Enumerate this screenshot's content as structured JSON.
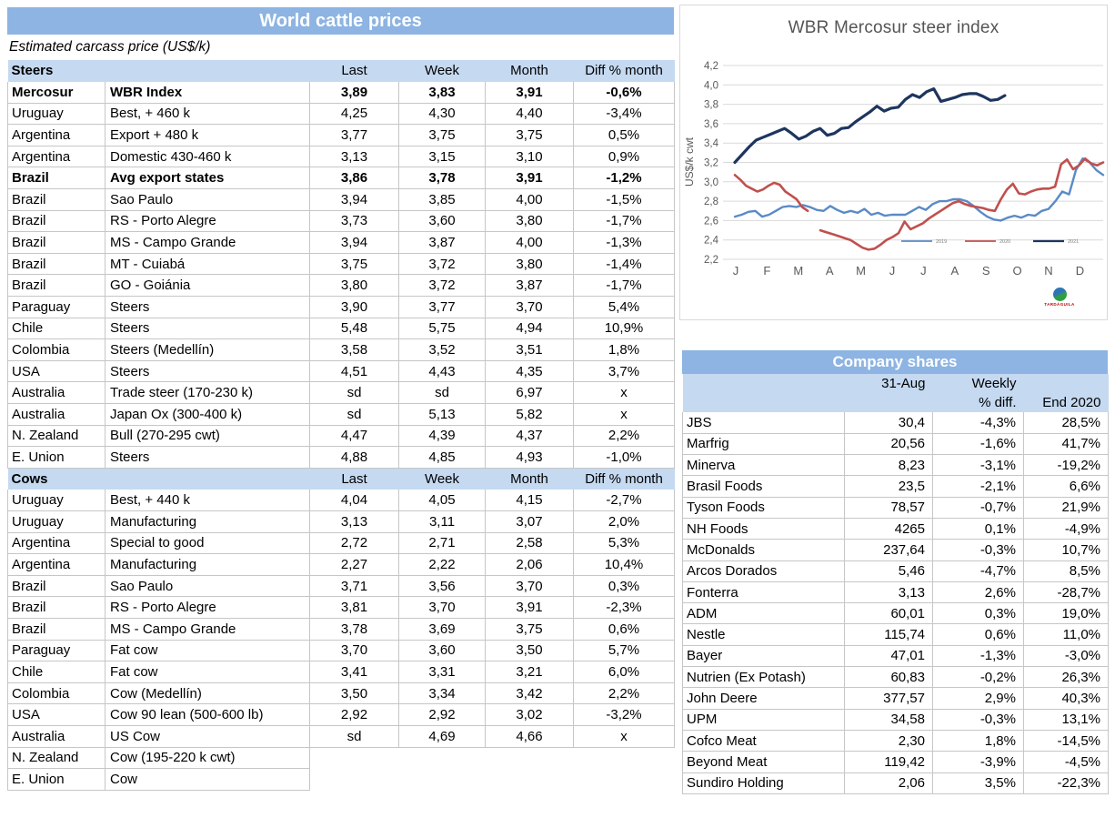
{
  "colors": {
    "title_bar_blue": "#8DB4E2",
    "section_band_blue": "#C5D9F1",
    "cell_border": "#C6C6C6",
    "chart_text_gray": "#595959",
    "series_2019_blue": "#5A8AC6",
    "series_2020_red": "#C0504D",
    "series_2021_navy": "#1E355E",
    "logo_text_red": "#c00000"
  },
  "world_table": {
    "title": "World cattle prices",
    "subtitle": "Estimated carcass price (US$/k)",
    "column_headers": [
      "Last",
      "Week",
      "Month",
      "Diff % month"
    ],
    "sections": [
      {
        "label": "Steers",
        "rows": [
          {
            "country": "Mercosur",
            "desc": "WBR Index",
            "last": "3,89",
            "week": "3,83",
            "month": "3,91",
            "diff": "-0,6%",
            "bold": true
          },
          {
            "country": "Uruguay",
            "desc": "Best, + 460 k",
            "last": "4,25",
            "week": "4,30",
            "month": "4,40",
            "diff": "-3,4%"
          },
          {
            "country": "Argentina",
            "desc": "Export + 480 k",
            "last": "3,77",
            "week": "3,75",
            "month": "3,75",
            "diff": "0,5%"
          },
          {
            "country": "Argentina",
            "desc": "Domestic 430-460 k",
            "last": "3,13",
            "week": "3,15",
            "month": "3,10",
            "diff": "0,9%"
          },
          {
            "country": "Brazil",
            "desc": "Avg export states",
            "last": "3,86",
            "week": "3,78",
            "month": "3,91",
            "diff": "-1,2%",
            "bold": true
          },
          {
            "country": "Brazil",
            "desc": "Sao Paulo",
            "last": "3,94",
            "week": "3,85",
            "month": "4,00",
            "diff": "-1,5%"
          },
          {
            "country": "Brazil",
            "desc": "RS - Porto Alegre",
            "last": "3,73",
            "week": "3,60",
            "month": "3,80",
            "diff": "-1,7%"
          },
          {
            "country": "Brazil",
            "desc": "MS - Campo Grande",
            "last": "3,94",
            "week": "3,87",
            "month": "4,00",
            "diff": "-1,3%"
          },
          {
            "country": "Brazil",
            "desc": "MT - Cuiabá",
            "last": "3,75",
            "week": "3,72",
            "month": "3,80",
            "diff": "-1,4%"
          },
          {
            "country": "Brazil",
            "desc": "GO - Goiánia",
            "last": "3,80",
            "week": "3,72",
            "month": "3,87",
            "diff": "-1,7%"
          },
          {
            "country": "Paraguay",
            "desc": "Steers",
            "last": "3,90",
            "week": "3,77",
            "month": "3,70",
            "diff": "5,4%"
          },
          {
            "country": "Chile",
            "desc": "Steers",
            "last": "5,48",
            "week": "5,75",
            "month": "4,94",
            "diff": "10,9%"
          },
          {
            "country": "Colombia",
            "desc": "Steers (Medellín)",
            "last": "3,58",
            "week": "3,52",
            "month": "3,51",
            "diff": "1,8%"
          },
          {
            "country": "USA",
            "desc": "Steers",
            "last": "4,51",
            "week": "4,43",
            "month": "4,35",
            "diff": "3,7%"
          },
          {
            "country": "Australia",
            "desc": "Trade steer (170-230 k)",
            "last": "sd",
            "week": "sd",
            "month": "6,97",
            "diff": "x"
          },
          {
            "country": "Australia",
            "desc": "Japan Ox (300-400 k)",
            "last": "sd",
            "week": "5,13",
            "month": "5,82",
            "diff": "x"
          },
          {
            "country": "N. Zealand",
            "desc": "Bull (270-295 cwt)",
            "last": "4,47",
            "week": "4,39",
            "month": "4,37",
            "diff": "2,2%"
          },
          {
            "country": "E. Union",
            "desc": "Steers",
            "last": "4,88",
            "week": "4,85",
            "month": "4,93",
            "diff": "-1,0%"
          }
        ]
      },
      {
        "label": "Cows",
        "rows": [
          {
            "country": "Uruguay",
            "desc": "Best, + 440 k",
            "last": "4,04",
            "week": "4,05",
            "month": "4,15",
            "diff": "-2,7%"
          },
          {
            "country": "Uruguay",
            "desc": "Manufacturing",
            "last": "3,13",
            "week": "3,11",
            "month": "3,07",
            "diff": "2,0%"
          },
          {
            "country": "Argentina",
            "desc": "Special to good",
            "last": "2,72",
            "week": "2,71",
            "month": "2,58",
            "diff": "5,3%"
          },
          {
            "country": "Argentina",
            "desc": "Manufacturing",
            "last": "2,27",
            "week": "2,22",
            "month": "2,06",
            "diff": "10,4%"
          },
          {
            "country": "Brazil",
            "desc": "Sao Paulo",
            "last": "3,71",
            "week": "3,56",
            "month": "3,70",
            "diff": "0,3%"
          },
          {
            "country": "Brazil",
            "desc": "RS - Porto Alegre",
            "last": "3,81",
            "week": "3,70",
            "month": "3,91",
            "diff": "-2,3%"
          },
          {
            "country": "Brazil",
            "desc": "MS - Campo Grande",
            "last": "3,78",
            "week": "3,69",
            "month": "3,75",
            "diff": "0,6%"
          },
          {
            "country": "Paraguay",
            "desc": "Fat cow",
            "last": "3,70",
            "week": "3,60",
            "month": "3,50",
            "diff": "5,7%"
          },
          {
            "country": "Chile",
            "desc": "Fat cow",
            "last": "3,41",
            "week": "3,31",
            "month": "3,21",
            "diff": "6,0%"
          },
          {
            "country": "Colombia",
            "desc": "Cow (Medellín)",
            "last": "3,50",
            "week": "3,34",
            "month": "3,42",
            "diff": "2,2%"
          },
          {
            "country": "USA",
            "desc": "Cow 90 lean (500-600 lb)",
            "last": "2,92",
            "week": "2,92",
            "month": "3,02",
            "diff": "-3,2%"
          },
          {
            "country": "Australia",
            "desc": "US Cow",
            "last": "sd",
            "week": "4,69",
            "month": "4,66",
            "diff": "x"
          },
          {
            "country": "N. Zealand",
            "desc": "Cow (195-220 k cwt)",
            "last": "",
            "week": "",
            "month": "",
            "diff": "",
            "partial": true
          },
          {
            "country": "E. Union",
            "desc": "Cow",
            "last": "",
            "week": "",
            "month": "",
            "diff": "",
            "partial": true
          }
        ]
      }
    ]
  },
  "chart_data": {
    "type": "line",
    "title": "WBR Mercosur steer index",
    "ylabel": "US$/k cwt",
    "ylim": [
      2.2,
      4.2
    ],
    "ytick_step": 0.2,
    "ytick_labels": [
      "4,2",
      "4,0",
      "3,8",
      "3,6",
      "3,4",
      "3,2",
      "3,0",
      "2,8",
      "2,6",
      "2,4",
      "2,2"
    ],
    "x_labels": [
      "J",
      "F",
      "M",
      "A",
      "M",
      "J",
      "J",
      "A",
      "S",
      "O",
      "N",
      "D"
    ],
    "grid": true,
    "legend_position": "inside-bottom",
    "series": [
      {
        "name": "2019",
        "color_key": "series_2019_blue",
        "stroke_width": 2.4,
        "segments": [
          {
            "xStart": 0,
            "xEnd": 1,
            "values": [
              2.64,
              2.66,
              2.69,
              2.7,
              2.64,
              2.66,
              2.7,
              2.74,
              2.75,
              2.74,
              2.76,
              2.74,
              2.71,
              2.7,
              2.75,
              2.71,
              2.68,
              2.7,
              2.68,
              2.72,
              2.66,
              2.68,
              2.65,
              2.66,
              2.66,
              2.66,
              2.7,
              2.74,
              2.71,
              2.77,
              2.8,
              2.8,
              2.82,
              2.82,
              2.8,
              2.75,
              2.69,
              2.64,
              2.61,
              2.6,
              2.63,
              2.65,
              2.63,
              2.66,
              2.65,
              2.7,
              2.72,
              2.8,
              2.9,
              2.87,
              3.12,
              3.24,
              3.2,
              3.12,
              3.07
            ]
          }
        ]
      },
      {
        "name": "2020",
        "color_key": "series_2020_red",
        "stroke_width": 2.6,
        "segments": [
          {
            "xStart": 0,
            "xEnd": 0.198,
            "values": [
              3.07,
              3.02,
              2.96,
              2.93,
              2.9,
              2.92,
              2.96,
              2.99,
              2.97,
              2.9,
              2.86,
              2.82,
              2.74,
              2.7
            ]
          },
          {
            "xStart": 0.232,
            "xEnd": 1,
            "values": [
              2.5,
              2.48,
              2.46,
              2.44,
              2.42,
              2.4,
              2.36,
              2.32,
              2.3,
              2.31,
              2.35,
              2.4,
              2.43,
              2.47,
              2.59,
              2.51,
              2.54,
              2.57,
              2.62,
              2.66,
              2.7,
              2.74,
              2.78,
              2.8,
              2.77,
              2.75,
              2.74,
              2.73,
              2.71,
              2.7,
              2.82,
              2.92,
              2.98,
              2.88,
              2.87,
              2.9,
              2.92,
              2.93,
              2.93,
              2.95,
              3.18,
              3.23,
              3.13,
              3.17,
              3.24,
              3.19,
              3.17,
              3.2
            ]
          }
        ]
      },
      {
        "name": "2021",
        "color_key": "series_2021_navy",
        "stroke_width": 3.2,
        "segments": [
          {
            "xStart": 0,
            "xEnd": 0.733,
            "values": [
              3.2,
              3.28,
              3.36,
              3.43,
              3.46,
              3.49,
              3.52,
              3.55,
              3.5,
              3.44,
              3.47,
              3.52,
              3.55,
              3.48,
              3.5,
              3.55,
              3.56,
              3.62,
              3.67,
              3.72,
              3.78,
              3.73,
              3.76,
              3.77,
              3.85,
              3.9,
              3.87,
              3.93,
              3.96,
              3.83,
              3.85,
              3.87,
              3.9,
              3.91,
              3.91,
              3.88,
              3.84,
              3.85,
              3.89
            ]
          }
        ]
      }
    ]
  },
  "company_table": {
    "title": "Company shares",
    "header": {
      "date": "31-Aug",
      "weekly_line1": "Weekly",
      "weekly_line2": "% diff.",
      "end2020": "End 2020"
    },
    "rows": [
      {
        "name": "JBS",
        "price": "30,4",
        "weekly": "-4,3%",
        "end2020": "28,5%"
      },
      {
        "name": "Marfrig",
        "price": "20,56",
        "weekly": "-1,6%",
        "end2020": "41,7%"
      },
      {
        "name": "Minerva",
        "price": "8,23",
        "weekly": "-3,1%",
        "end2020": "-19,2%"
      },
      {
        "name": "Brasil Foods",
        "price": "23,5",
        "weekly": "-2,1%",
        "end2020": "6,6%"
      },
      {
        "name": "Tyson Foods",
        "price": "78,57",
        "weekly": "-0,7%",
        "end2020": "21,9%"
      },
      {
        "name": "NH Foods",
        "price": "4265",
        "weekly": "0,1%",
        "end2020": "-4,9%"
      },
      {
        "name": "McDonalds",
        "price": "237,64",
        "weekly": "-0,3%",
        "end2020": "10,7%"
      },
      {
        "name": "Arcos Dorados",
        "price": "5,46",
        "weekly": "-4,7%",
        "end2020": "8,5%"
      },
      {
        "name": "Fonterra",
        "price": "3,13",
        "weekly": "2,6%",
        "end2020": "-28,7%"
      },
      {
        "name": "ADM",
        "price": "60,01",
        "weekly": "0,3%",
        "end2020": "19,0%"
      },
      {
        "name": "Nestle",
        "price": "115,74",
        "weekly": "0,6%",
        "end2020": "11,0%"
      },
      {
        "name": "Bayer",
        "price": "47,01",
        "weekly": "-1,3%",
        "end2020": "-3,0%"
      },
      {
        "name": "Nutrien (Ex Potash)",
        "price": "60,83",
        "weekly": "-0,2%",
        "end2020": "26,3%"
      },
      {
        "name": "John Deere",
        "price": "377,57",
        "weekly": "2,9%",
        "end2020": "40,3%"
      },
      {
        "name": "UPM",
        "price": "34,58",
        "weekly": "-0,3%",
        "end2020": "13,1%"
      },
      {
        "name": "Cofco Meat",
        "price": "2,30",
        "weekly": "1,8%",
        "end2020": "-14,5%"
      },
      {
        "name": "Beyond Meat",
        "price": "119,42",
        "weekly": "-3,9%",
        "end2020": "-4,5%"
      },
      {
        "name": "Sundiro Holding",
        "price": "2,06",
        "weekly": "3,5%",
        "end2020": "-22,3%"
      }
    ]
  },
  "logo": {
    "caption": "TARDÁGUILA"
  }
}
